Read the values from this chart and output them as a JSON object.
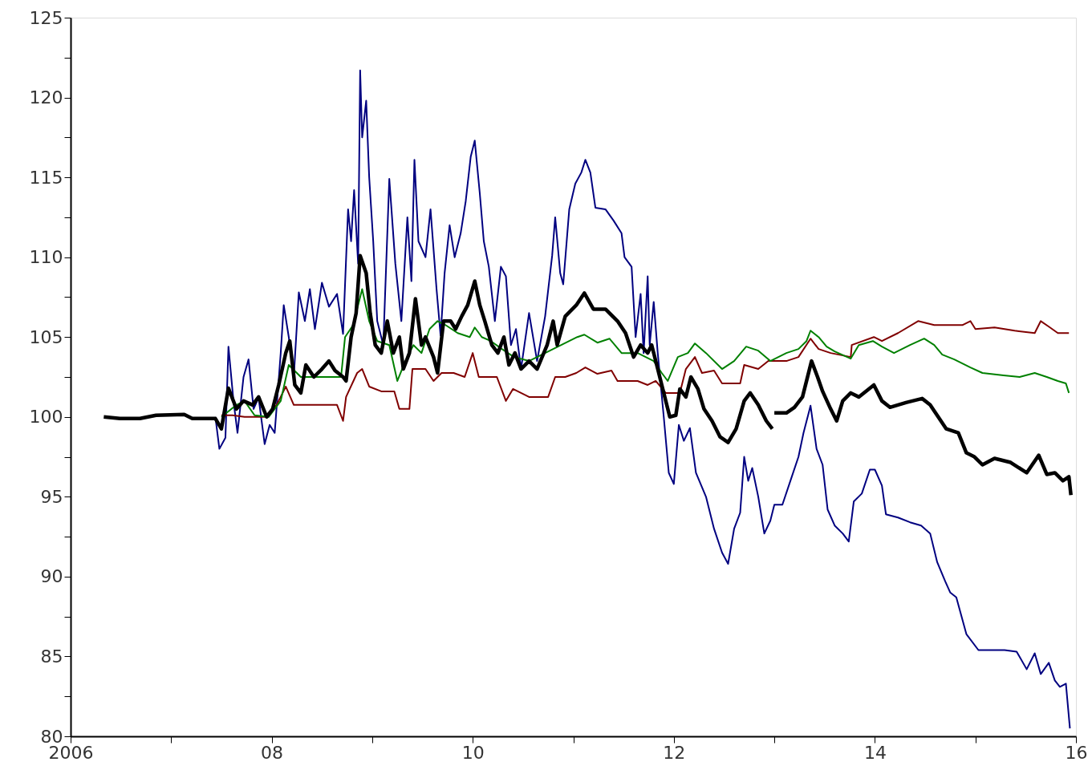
{
  "chart_data": {
    "type": "line",
    "xlim": [
      2006,
      2016
    ],
    "ylim": [
      80,
      125
    ],
    "xticks": [
      2006,
      {
        "value": 2007,
        "label": null
      },
      {
        "value": 2008,
        "label": "08"
      },
      {
        "value": 2009,
        "label": null
      },
      {
        "value": 2010,
        "label": "10"
      },
      {
        "value": 2011,
        "label": null
      },
      {
        "value": 2012,
        "label": "12"
      },
      {
        "value": 2013,
        "label": null
      },
      {
        "value": 2014,
        "label": "14"
      },
      {
        "value": 2015,
        "label": null
      },
      {
        "value": 2016,
        "label": "16"
      }
    ],
    "yticks": [
      80,
      {
        "value": 82.5,
        "label": null
      },
      85,
      {
        "value": 87.5,
        "label": null
      },
      90,
      {
        "value": 92.5,
        "label": null
      },
      95,
      {
        "value": 97.5,
        "label": null
      },
      100,
      {
        "value": 102.5,
        "label": null
      },
      105,
      {
        "value": 107.5,
        "label": null
      },
      110,
      {
        "value": 112.5,
        "label": null
      },
      115,
      {
        "value": 117.5,
        "label": null
      },
      120,
      {
        "value": 122.5,
        "label": null
      },
      125
    ],
    "grid": false,
    "marker": "none",
    "line_style": "solid",
    "series": [
      {
        "color": "#000080",
        "x": [
          2007.44,
          2007.48,
          2007.54,
          2007.57,
          2007.62,
          2007.66,
          2007.72,
          2007.77,
          2007.82,
          2007.87,
          2007.93,
          2007.98,
          2008.03,
          2008.09,
          2008.12,
          2008.17,
          2008.22,
          2008.27,
          2008.33,
          2008.38,
          2008.43,
          2008.5,
          2008.57,
          2008.65,
          2008.71,
          2008.76,
          2008.79,
          2008.82,
          2008.86,
          2008.88,
          2008.9,
          2008.94,
          2008.97,
          2009.01,
          2009.05,
          2009.11,
          2009.17,
          2009.23,
          2009.29,
          2009.35,
          2009.39,
          2009.42,
          2009.46,
          2009.53,
          2009.58,
          2009.64,
          2009.68,
          2009.72,
          2009.77,
          2009.82,
          2009.88,
          2009.93,
          2009.98,
          2010.02,
          2010.07,
          2010.11,
          2010.16,
          2010.22,
          2010.28,
          2010.33,
          2010.38,
          2010.43,
          2010.48,
          2010.56,
          2010.64,
          2010.72,
          2010.79,
          2010.82,
          2010.87,
          2010.9,
          2010.96,
          2011.02,
          2011.08,
          2011.12,
          2011.17,
          2011.22,
          2011.32,
          2011.4,
          2011.48,
          2011.51,
          2011.58,
          2011.62,
          2011.67,
          2011.7,
          2011.74,
          2011.76,
          2011.8,
          2011.84,
          2011.9,
          2011.95,
          2012.0,
          2012.05,
          2012.1,
          2012.16,
          2012.22,
          2012.32,
          2012.4,
          2012.48,
          2012.54,
          2012.6,
          2012.66,
          2012.7,
          2012.74,
          2012.78,
          2012.84,
          2012.9,
          2012.96,
          2013.0,
          2013.08,
          2013.16,
          2013.24,
          2013.29,
          2013.36,
          2013.42,
          2013.48,
          2013.53,
          2013.6,
          2013.68,
          2013.74,
          2013.79,
          2013.87,
          2013.95,
          2014.0,
          2014.07,
          2014.11,
          2014.23,
          2014.35,
          2014.46,
          2014.55,
          2014.62,
          2014.7,
          2014.75,
          2014.81,
          2014.91,
          2015.03,
          2015.15,
          2015.29,
          2015.41,
          2015.51,
          2015.59,
          2015.65,
          2015.73,
          2015.79,
          2015.84,
          2015.9,
          2015.94
        ],
        "values": [
          100.0,
          98.0,
          98.7,
          104.4,
          101.0,
          99.0,
          102.5,
          103.6,
          100.5,
          101.2,
          98.3,
          99.5,
          99.0,
          104.0,
          107.0,
          105.0,
          102.5,
          107.8,
          106.0,
          108.0,
          105.5,
          108.4,
          106.9,
          107.7,
          105.2,
          113.0,
          111.0,
          114.2,
          109.6,
          121.7,
          117.5,
          119.8,
          115.0,
          111.0,
          106.0,
          104.5,
          114.9,
          109.6,
          106.0,
          112.5,
          108.5,
          116.1,
          111.0,
          110.0,
          113.0,
          108.0,
          105.1,
          109.0,
          112.0,
          110.0,
          111.5,
          113.5,
          116.3,
          117.3,
          114.0,
          111.0,
          109.4,
          106.0,
          109.4,
          108.8,
          104.5,
          105.5,
          103.0,
          106.5,
          103.5,
          106.3,
          110.1,
          112.5,
          109.0,
          108.3,
          113.0,
          114.6,
          115.3,
          116.1,
          115.3,
          113.1,
          113.0,
          112.3,
          111.5,
          110.0,
          109.4,
          105.0,
          107.7,
          104.0,
          108.8,
          104.5,
          107.2,
          104.0,
          100.0,
          96.5,
          95.8,
          99.5,
          98.5,
          99.3,
          96.5,
          95.0,
          93.0,
          91.5,
          90.8,
          93.0,
          94.0,
          97.5,
          96.0,
          96.8,
          95.0,
          92.7,
          93.5,
          94.5,
          94.5,
          96.0,
          97.5,
          99.0,
          100.7,
          98.0,
          97.0,
          94.2,
          93.2,
          92.7,
          92.2,
          94.7,
          95.2,
          96.7,
          96.7,
          95.7,
          93.9,
          93.7,
          93.4,
          93.2,
          92.7,
          90.9,
          89.7,
          89.0,
          88.7,
          86.4,
          85.4,
          85.4,
          85.4,
          85.3,
          84.2,
          85.2,
          83.9,
          84.6,
          83.5,
          83.1,
          83.3,
          80.5
        ]
      },
      {
        "color": "#800000",
        "x": [
          2007.5,
          2007.61,
          2007.73,
          2007.93,
          2008.05,
          2008.14,
          2008.22,
          2008.33,
          2008.65,
          2008.71,
          2008.74,
          2008.85,
          2008.9,
          2008.97,
          2009.09,
          2009.22,
          2009.27,
          2009.37,
          2009.4,
          2009.53,
          2009.61,
          2009.69,
          2009.81,
          2009.92,
          2010.0,
          2010.06,
          2010.24,
          2010.33,
          2010.4,
          2010.56,
          2010.75,
          2010.82,
          2010.92,
          2011.03,
          2011.12,
          2011.24,
          2011.38,
          2011.44,
          2011.64,
          2011.74,
          2011.82,
          2011.92,
          2012.06,
          2012.12,
          2012.21,
          2012.28,
          2012.4,
          2012.48,
          2012.66,
          2012.7,
          2012.84,
          2012.94,
          2013.12,
          2013.24,
          2013.36,
          2013.44,
          2013.56,
          2013.76,
          2013.77,
          2013.99,
          2014.07,
          2014.23,
          2014.43,
          2014.59,
          2014.87,
          2014.95,
          2015.0,
          2015.19,
          2015.39,
          2015.59,
          2015.65,
          2015.73,
          2015.82,
          2015.93
        ],
        "values": [
          100.1,
          100.1,
          100.0,
          100.0,
          100.75,
          101.9,
          100.75,
          100.75,
          100.75,
          99.75,
          101.25,
          102.75,
          103.0,
          101.9,
          101.6,
          101.6,
          100.5,
          100.5,
          103.0,
          103.0,
          102.25,
          102.75,
          102.75,
          102.5,
          104.0,
          102.5,
          102.5,
          101.0,
          101.75,
          101.25,
          101.25,
          102.5,
          102.5,
          102.75,
          103.1,
          102.7,
          102.9,
          102.25,
          102.25,
          102.0,
          102.25,
          101.5,
          101.5,
          103.0,
          103.75,
          102.75,
          102.9,
          102.1,
          102.1,
          103.25,
          103.0,
          103.5,
          103.5,
          103.75,
          104.9,
          104.25,
          104.0,
          103.75,
          104.5,
          105.0,
          104.75,
          105.25,
          106.0,
          105.75,
          105.75,
          106.0,
          105.5,
          105.6,
          105.4,
          105.25,
          106.0,
          105.65,
          105.25,
          105.25
        ]
      },
      {
        "color": "#008000",
        "x": [
          2007.5,
          2007.65,
          2007.73,
          2007.83,
          2007.97,
          2008.09,
          2008.17,
          2008.29,
          2008.49,
          2008.69,
          2008.73,
          2008.81,
          2008.9,
          2008.97,
          2009.05,
          2009.17,
          2009.25,
          2009.33,
          2009.41,
          2009.49,
          2009.57,
          2009.65,
          2009.73,
          2009.85,
          2009.97,
          2010.02,
          2010.09,
          2010.18,
          2010.29,
          2010.41,
          2010.56,
          2010.72,
          2010.88,
          2011.04,
          2011.11,
          2011.24,
          2011.36,
          2011.48,
          2011.64,
          2011.8,
          2011.88,
          2011.94,
          2012.04,
          2012.14,
          2012.21,
          2012.32,
          2012.48,
          2012.6,
          2012.72,
          2012.84,
          2012.96,
          2013.12,
          2013.24,
          2013.32,
          2013.36,
          2013.44,
          2013.52,
          2013.6,
          2013.76,
          2013.84,
          2013.98,
          2014.07,
          2014.19,
          2014.35,
          2014.49,
          2014.59,
          2014.67,
          2014.79,
          2014.95,
          2015.07,
          2015.28,
          2015.44,
          2015.59,
          2015.71,
          2015.82,
          2015.9,
          2015.93
        ],
        "values": [
          100.0,
          100.75,
          101.0,
          100.1,
          100.0,
          101.0,
          103.25,
          102.5,
          102.5,
          102.5,
          105.0,
          105.75,
          108.0,
          106.0,
          104.75,
          104.5,
          102.25,
          103.5,
          104.5,
          104.0,
          105.5,
          106.0,
          105.75,
          105.25,
          105.0,
          105.6,
          105.0,
          104.75,
          104.25,
          103.75,
          103.5,
          104.0,
          104.5,
          105.0,
          105.15,
          104.65,
          104.9,
          104.0,
          104.0,
          103.5,
          102.75,
          102.25,
          103.75,
          104.0,
          104.6,
          104.0,
          103.0,
          103.5,
          104.4,
          104.15,
          103.5,
          104.0,
          104.25,
          104.75,
          105.4,
          105.0,
          104.4,
          104.1,
          103.65,
          104.5,
          104.75,
          104.4,
          104.0,
          104.5,
          104.9,
          104.5,
          103.9,
          103.6,
          103.1,
          102.75,
          102.6,
          102.5,
          102.75,
          102.5,
          102.25,
          102.1,
          101.5
        ]
      },
      {
        "color": "#000000",
        "x": [
          2006.33,
          2006.49,
          2006.69,
          2006.85,
          2007.13,
          2007.21,
          2007.44,
          2007.5,
          2007.57,
          2007.65,
          2007.72,
          2007.81,
          2007.87,
          2007.95,
          2008.01,
          2008.07,
          2008.14,
          2008.18,
          2008.23,
          2008.29,
          2008.34,
          2008.42,
          2008.5,
          2008.57,
          2008.63,
          2008.71,
          2008.74,
          2008.79,
          2008.84,
          2008.88,
          2008.94,
          2008.98,
          2009.03,
          2009.09,
          2009.15,
          2009.21,
          2009.27,
          2009.31,
          2009.37,
          2009.43,
          2009.49,
          2009.53,
          2009.61,
          2009.65,
          2009.71,
          2009.78,
          2009.83,
          2009.89,
          2009.95,
          2010.02,
          2010.07,
          2010.12,
          2010.19,
          2010.25,
          2010.31,
          2010.36,
          2010.42,
          2010.48,
          2010.56,
          2010.64,
          2010.74,
          2010.8,
          2010.84,
          2010.92,
          2011.03,
          2011.11,
          2011.2,
          2011.32,
          2011.44,
          2011.52,
          2011.6,
          2011.67,
          2011.74,
          2011.78,
          2011.84,
          2011.9,
          2011.96,
          2012.02,
          2012.06,
          2012.12,
          2012.17,
          2012.24,
          2012.3,
          2012.38,
          2012.46,
          2012.54,
          2012.62,
          2012.7,
          2012.76,
          2012.84,
          2012.92,
          2012.98,
          2012.99,
          2013.0,
          2013.12,
          2013.2,
          2013.28,
          2013.37,
          2013.43,
          2013.48,
          2013.56,
          2013.62,
          2013.68,
          2013.76,
          2013.84,
          2013.99,
          2014.07,
          2014.15,
          2014.31,
          2014.47,
          2014.55,
          2014.63,
          2014.71,
          2014.83,
          2014.91,
          2014.99,
          2015.07,
          2015.19,
          2015.35,
          2015.51,
          2015.63,
          2015.71,
          2015.79,
          2015.87,
          2015.93,
          2015.95
        ],
        "values": [
          100.0,
          99.9,
          99.9,
          100.1,
          100.15,
          99.9,
          99.9,
          99.25,
          101.8,
          100.5,
          101.0,
          100.75,
          101.25,
          100.0,
          100.5,
          102.0,
          104.0,
          104.75,
          102.0,
          101.5,
          103.25,
          102.5,
          103.0,
          103.5,
          102.9,
          102.5,
          102.25,
          105.0,
          106.5,
          110.1,
          109.0,
          106.5,
          104.5,
          104.0,
          106.0,
          104.0,
          105.0,
          103.0,
          104.0,
          107.4,
          104.5,
          105.0,
          103.75,
          102.75,
          106.0,
          106.0,
          105.5,
          106.3,
          107.0,
          108.5,
          107.0,
          106.0,
          104.5,
          104.0,
          105.0,
          103.25,
          104.0,
          103.0,
          103.5,
          103.0,
          104.5,
          106.0,
          104.5,
          106.3,
          107.0,
          107.75,
          106.75,
          106.75,
          106.0,
          105.25,
          103.75,
          104.5,
          104.0,
          104.5,
          103.0,
          101.5,
          100.0,
          100.1,
          101.75,
          101.25,
          102.5,
          101.75,
          100.5,
          99.75,
          98.75,
          98.4,
          99.25,
          101.0,
          101.5,
          100.75,
          99.75,
          99.25,
          null,
          100.25,
          100.25,
          100.6,
          101.25,
          103.5,
          102.5,
          101.6,
          100.5,
          99.75,
          101.0,
          101.5,
          101.25,
          102.0,
          101.0,
          100.6,
          100.9,
          101.15,
          100.75,
          100.0,
          99.25,
          99.0,
          97.75,
          97.5,
          97.0,
          97.4,
          97.15,
          96.5,
          97.6,
          96.4,
          96.5,
          96.0,
          96.25,
          95.1
        ]
      }
    ]
  }
}
